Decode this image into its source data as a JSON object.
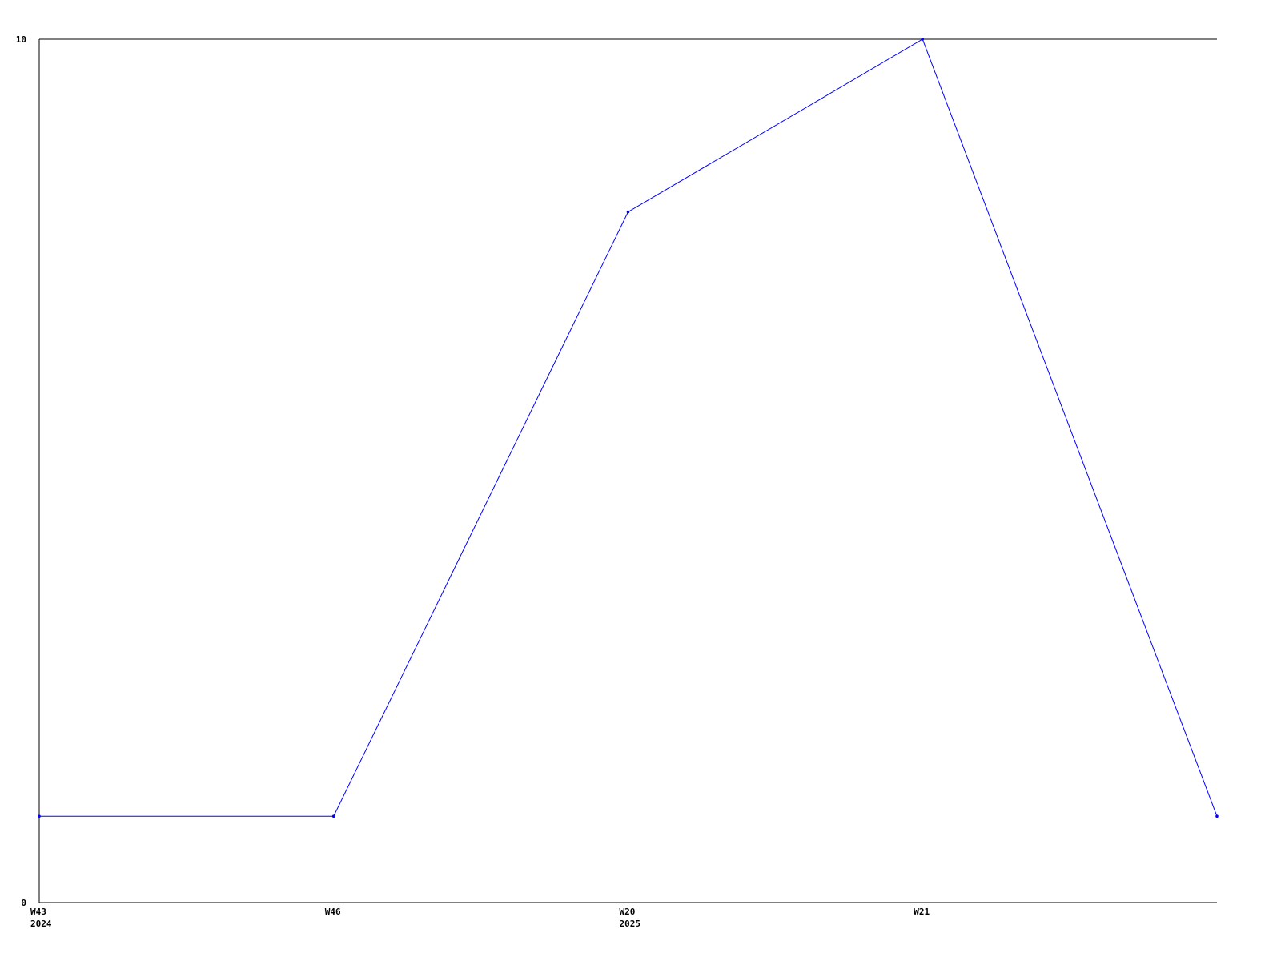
{
  "chart_data": {
    "type": "line",
    "title": "",
    "xlabel": "",
    "ylabel": "",
    "categories": [
      {
        "label": "W43",
        "sublabel": "2024"
      },
      {
        "label": "W46",
        "sublabel": ""
      },
      {
        "label": "W20",
        "sublabel": "2025"
      },
      {
        "label": "W21",
        "sublabel": ""
      },
      {
        "label": "",
        "sublabel": ""
      }
    ],
    "series": [
      {
        "values": [
          1,
          1,
          8,
          10,
          1
        ],
        "color": "#0000ff"
      }
    ],
    "ylim": [
      0,
      10
    ],
    "yticks": [
      "0",
      "10"
    ],
    "grid": false,
    "legend": "none"
  }
}
